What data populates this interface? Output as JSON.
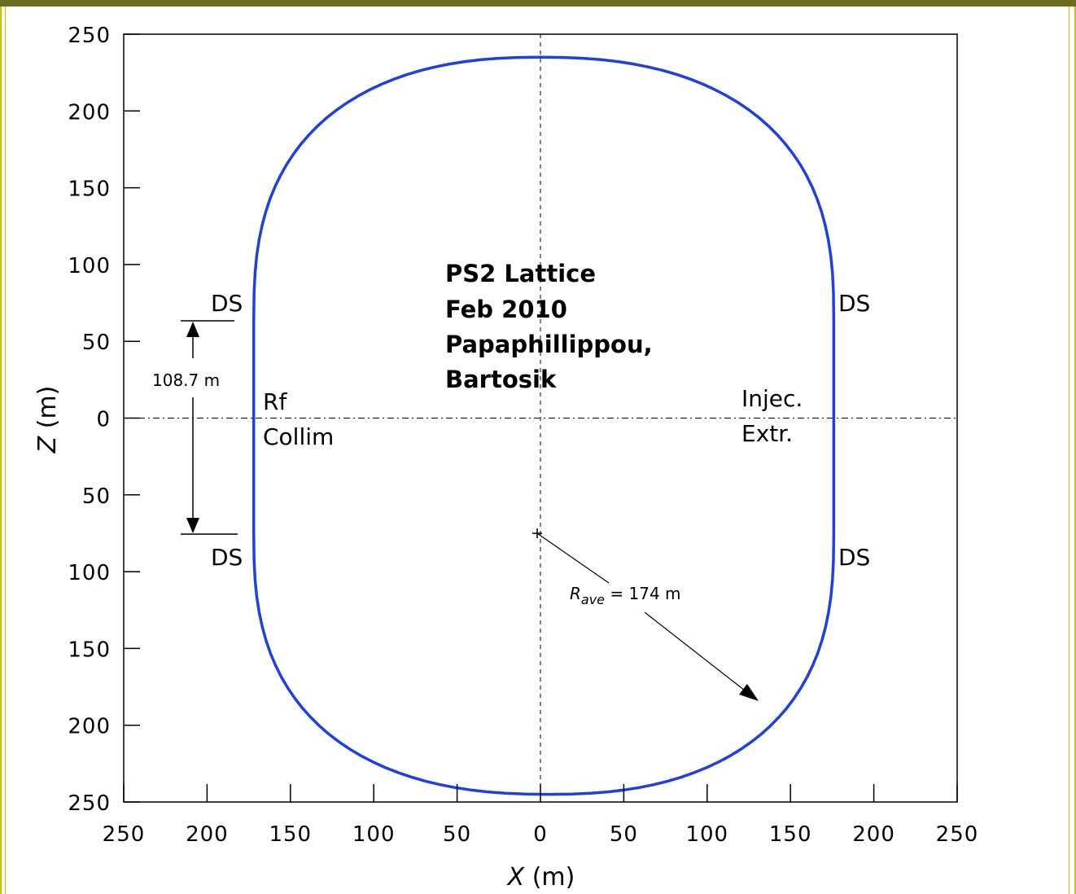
{
  "chart_data": {
    "type": "line",
    "title": "",
    "xlabel": {
      "var": "X",
      "unit": " (m)"
    },
    "ylabel": {
      "var": "Z",
      "unit": " (m)"
    },
    "xlim": [
      -250,
      250
    ],
    "ylim": [
      -250,
      250
    ],
    "x_ticks": [
      -250,
      -200,
      -150,
      -100,
      -50,
      0,
      50,
      100,
      150,
      200,
      250
    ],
    "y_ticks": [
      250,
      200,
      150,
      100,
      50,
      0,
      -50,
      -100,
      -150,
      -200,
      -250
    ],
    "x_tick_labels": [
      "250",
      "200",
      "150",
      "100",
      "50",
      "0",
      "50",
      "100",
      "150",
      "200",
      "250"
    ],
    "y_tick_labels": [
      "250",
      "200",
      "150",
      "100",
      "50",
      "0",
      "50",
      "100",
      "150",
      "200",
      "250"
    ],
    "grid": false,
    "series": [
      {
        "color": "#1f3fe0",
        "shape": "racetrack",
        "straight_x": [
          -172,
          176
        ],
        "top": {
          "z_start": 63,
          "z_peak": 235,
          "x_peak": 0
        },
        "bottom": {
          "z_start": -74,
          "z_peak": -245,
          "x_peak": 5
        }
      }
    ],
    "annotations": {
      "lattice_title": [
        "PS2 Lattice",
        "Feb 2010",
        "Papaphillippou,",
        "Bartosik"
      ],
      "ds_labels": [
        "DS",
        "DS",
        "DS",
        "DS"
      ],
      "left_section": [
        "Rf",
        "Collim"
      ],
      "right_section": [
        "Injec.",
        "Extr."
      ],
      "straight_length": "108.7  m",
      "radius_symbol": "R",
      "radius_subscript": "ave",
      "radius_value": " = 174 m"
    },
    "colors": {
      "curve": "#1f3fe0",
      "frame": "#d4c000",
      "top_bar": "#6b6b1e"
    }
  }
}
